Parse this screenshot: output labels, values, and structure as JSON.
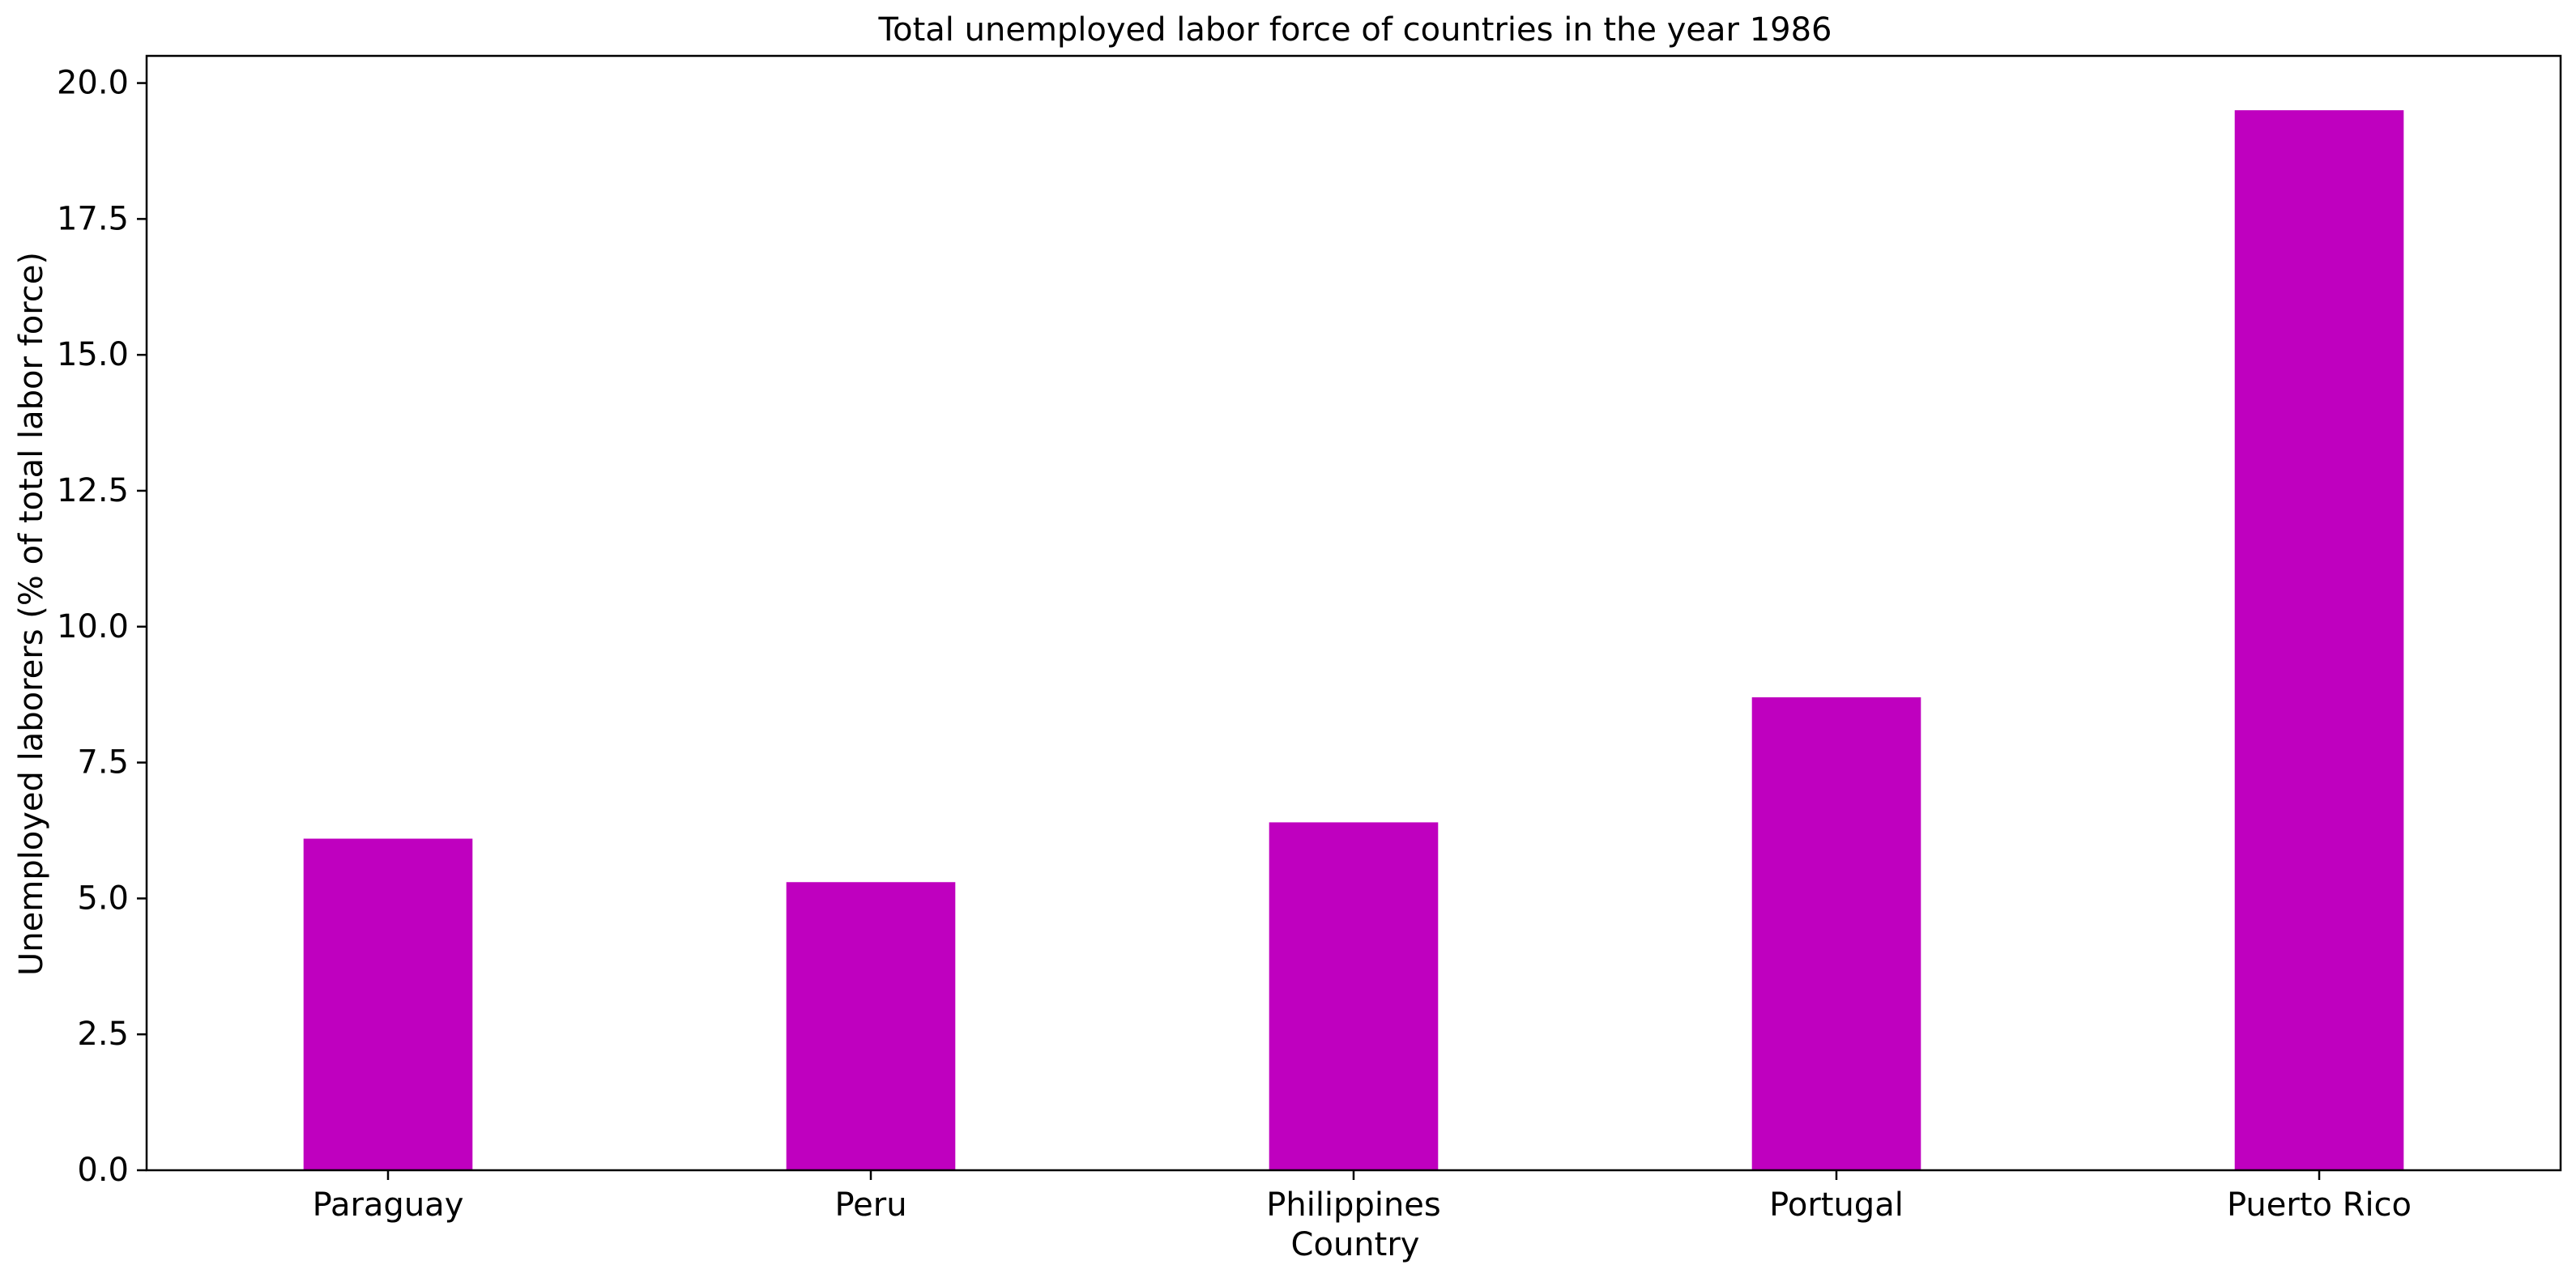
{
  "chart_data": {
    "type": "bar",
    "title": "Total unemployed labor force of countries in the year 1986",
    "xlabel": "Country",
    "ylabel": "Unemployed laborers (% of total labor force)",
    "categories": [
      "Paraguay",
      "Peru",
      "Philippines",
      "Portugal",
      "Puerto Rico"
    ],
    "values": [
      6.1,
      5.3,
      6.4,
      8.7,
      19.5
    ],
    "ylim": [
      0,
      20.5
    ],
    "yticks": [
      0.0,
      2.5,
      5.0,
      7.5,
      10.0,
      12.5,
      15.0,
      17.5,
      20.0
    ],
    "ytick_labels": [
      "0.0",
      "2.5",
      "5.0",
      "7.5",
      "10.0",
      "12.5",
      "15.0",
      "17.5",
      "20.0"
    ],
    "grid": false,
    "legend": "none",
    "bar_color": "#bf00bf"
  }
}
